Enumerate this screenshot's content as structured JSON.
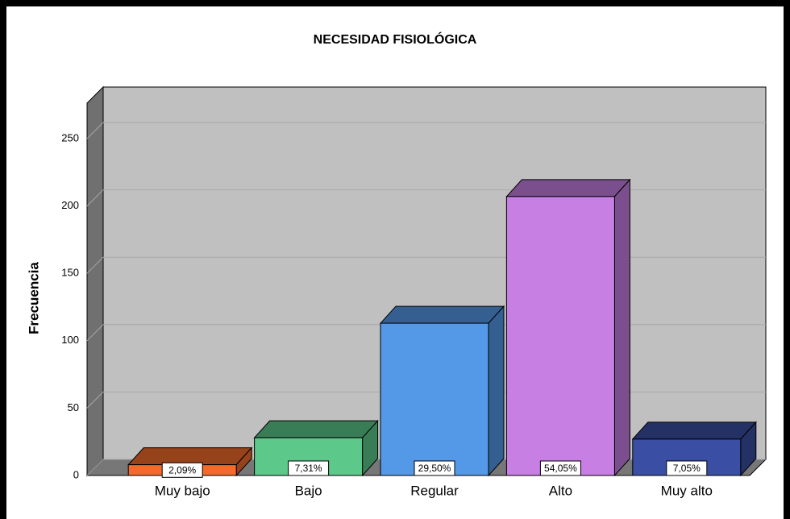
{
  "chart_data": {
    "type": "bar3d",
    "title": "NECESIDAD FISIOLÓGICA",
    "y_label": "Frecuencia",
    "categories": [
      "Muy bajo",
      "Bajo",
      "Regular",
      "Alto",
      "Muy alto"
    ],
    "values": [
      8,
      28,
      113,
      207,
      27
    ],
    "percentages": [
      2.09,
      7.31,
      29.5,
      54.05,
      7.05
    ],
    "percentage_labels": [
      "2,09%",
      "7,31%",
      "29,50%",
      "54,05%",
      "7,05%"
    ],
    "colors": [
      "#f26b2b",
      "#5cc98a",
      "#5499e8",
      "#c77fe4",
      "#3a4fa3"
    ],
    "ylim": [
      0,
      250
    ],
    "yticks": [
      0,
      50,
      100,
      150,
      200,
      250
    ],
    "grid": true
  }
}
